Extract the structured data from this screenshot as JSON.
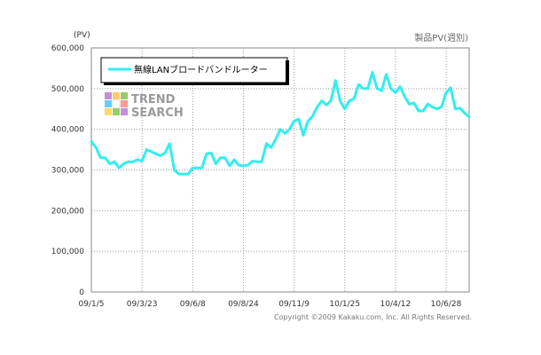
{
  "chart_data": {
    "type": "line",
    "title": "製品PV(週別)",
    "ylabel": "(PV)",
    "ylim": [
      0,
      600000
    ],
    "yticks": [
      {
        "value": 600000,
        "label": "600,000"
      },
      {
        "value": 500000,
        "label": "500,000"
      },
      {
        "value": 400000,
        "label": "400,000"
      },
      {
        "value": 300000,
        "label": "300,000"
      },
      {
        "value": 200000,
        "label": "200,000"
      },
      {
        "value": 100000,
        "label": "100,000"
      },
      {
        "value": 0,
        "label": "0"
      }
    ],
    "xticks": [
      {
        "index": 0,
        "label": "09/1/5"
      },
      {
        "index": 11,
        "label": "09/3/23"
      },
      {
        "index": 22,
        "label": "09/6/8"
      },
      {
        "index": 33,
        "label": "09/8/24"
      },
      {
        "index": 44,
        "label": "09/11/9"
      },
      {
        "index": 55,
        "label": "10/1/25"
      },
      {
        "index": 66,
        "label": "10/4/12"
      },
      {
        "index": 77,
        "label": "10/6/28"
      }
    ],
    "grid": true,
    "legend_position": "top-left",
    "series": [
      {
        "name": "無線LANブロードバンドルーター",
        "color": "#33eeee",
        "values": [
          370000,
          355000,
          330000,
          330000,
          315000,
          320000,
          305000,
          315000,
          320000,
          320000,
          325000,
          322000,
          350000,
          345000,
          340000,
          335000,
          342000,
          365000,
          300000,
          290000,
          290000,
          290000,
          305000,
          305000,
          305000,
          340000,
          342000,
          315000,
          330000,
          330000,
          310000,
          325000,
          312000,
          310000,
          312000,
          322000,
          320000,
          320000,
          365000,
          355000,
          375000,
          400000,
          390000,
          400000,
          420000,
          425000,
          385000,
          420000,
          432000,
          455000,
          470000,
          460000,
          470000,
          520000,
          470000,
          450000,
          470000,
          475000,
          510000,
          500000,
          500000,
          540000,
          500000,
          495000,
          535000,
          500000,
          490000,
          505000,
          480000,
          462000,
          465000,
          445000,
          445000,
          462000,
          455000,
          450000,
          455000,
          490000,
          502000,
          450000,
          452000,
          440000,
          430000
        ]
      }
    ],
    "copyright": "Copyright ©2009 Kakaku.com, Inc. All Rights Reserved.",
    "logo": {
      "line1": "TREND",
      "line2": "SEARCH"
    }
  }
}
